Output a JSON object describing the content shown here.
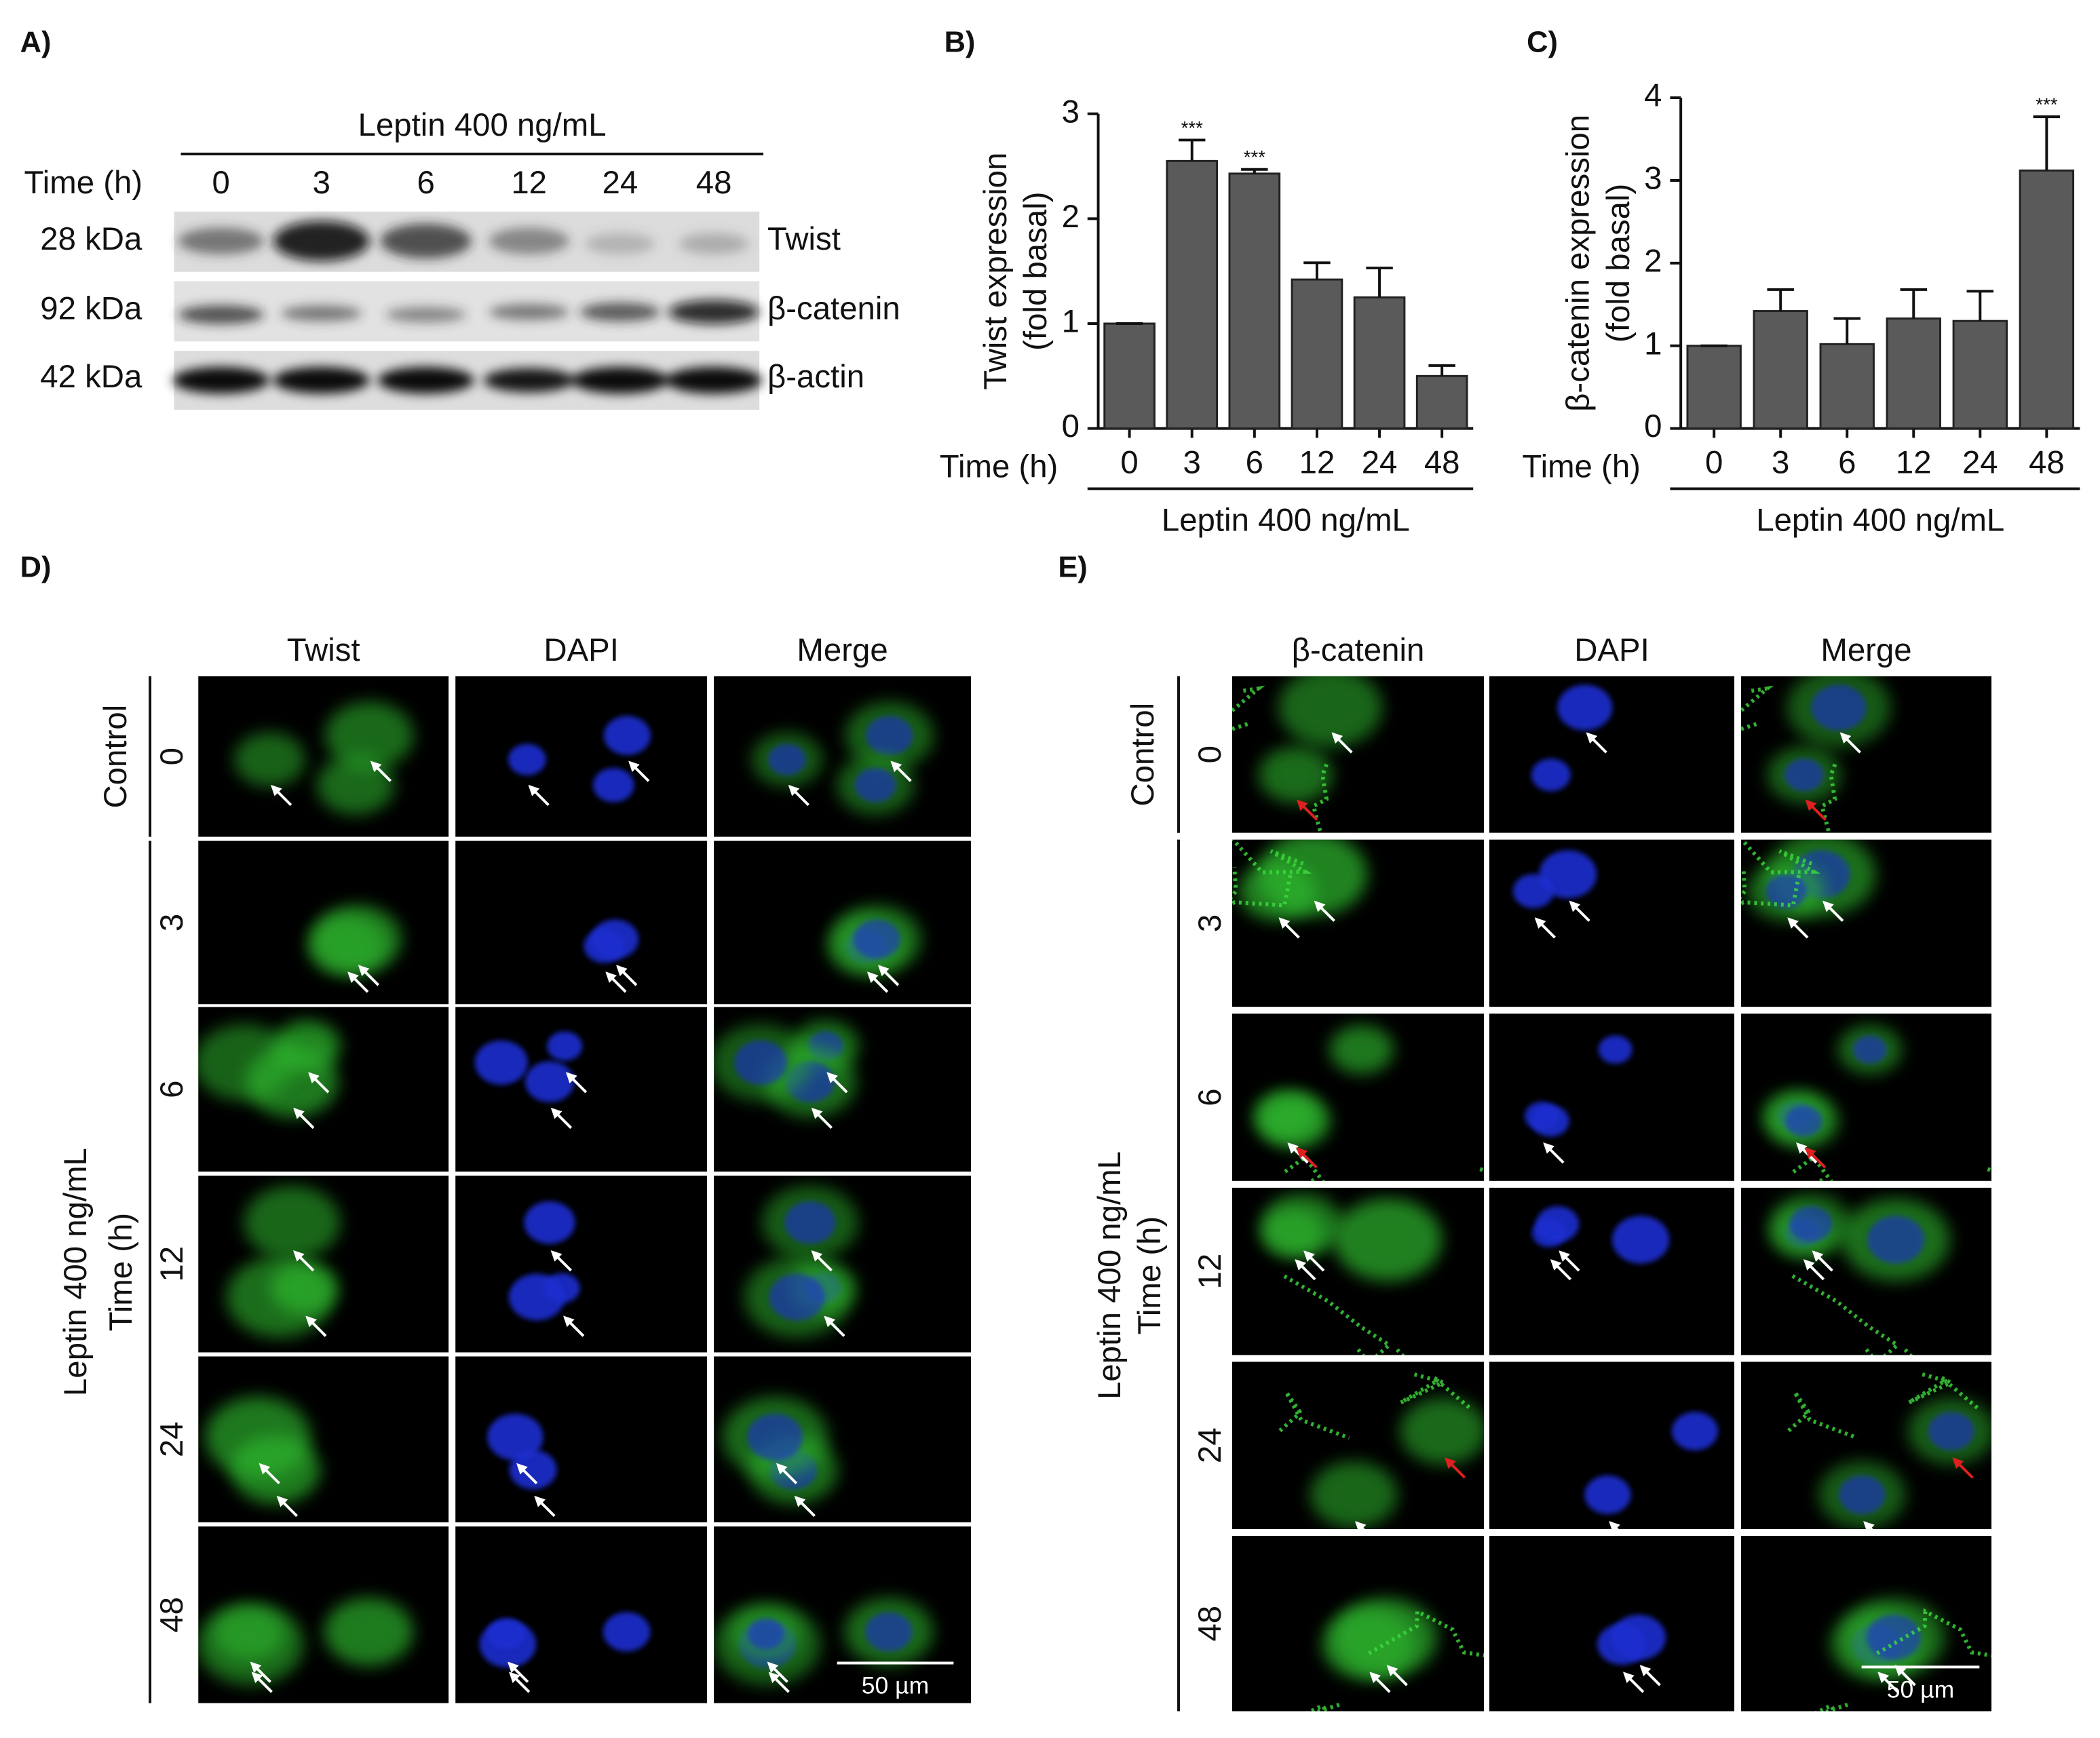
{
  "blot": {
    "label": "A)",
    "treatment": "Leptin 400 ng/mL",
    "time_label": "Time (h)",
    "times": [
      "0",
      "3",
      "6",
      "12",
      "24",
      "48"
    ],
    "rows": [
      {
        "size": "28 kDa",
        "protein": "Twist"
      },
      {
        "size": "92 kDa",
        "protein": "β-catenin"
      },
      {
        "size": "42 kDa",
        "protein": "β-actin"
      }
    ]
  },
  "chart_data": [
    {
      "type": "bar",
      "panel_label": "B)",
      "y_label": [
        "Twist  expression",
        "(fold basal)"
      ],
      "x_label": "Time (h)",
      "group_label": "Leptin 400 ng/mL",
      "categories": [
        "0",
        "3",
        "6",
        "12",
        "24",
        "48"
      ],
      "values": [
        1,
        2.55,
        2.43,
        1.42,
        1.25,
        0.5
      ],
      "errors": [
        0,
        0.2,
        0.04,
        0.16,
        0.28,
        0.1
      ],
      "significance": [
        null,
        "***",
        "***",
        null,
        null,
        null
      ],
      "color": "#5a5a5a",
      "ylim": [
        0,
        3
      ],
      "yticks": [
        0,
        1,
        2,
        3
      ]
    },
    {
      "type": "bar",
      "panel_label": "C)",
      "y_label": [
        "β-catenin expression",
        "(fold basal)"
      ],
      "x_label": "Time (h)",
      "group_label": "Leptin 400 ng/mL",
      "categories": [
        "0",
        "3",
        "6",
        "12",
        "24",
        "48"
      ],
      "values": [
        1,
        1.42,
        1.02,
        1.33,
        1.3,
        3.12
      ],
      "errors": [
        0,
        0.26,
        0.31,
        0.35,
        0.36,
        0.65
      ],
      "significance": [
        null,
        null,
        null,
        null,
        null,
        "***"
      ],
      "color": "#5a5a5a",
      "ylim": [
        0,
        4
      ],
      "yticks": [
        0,
        1,
        2,
        3,
        4
      ]
    }
  ],
  "microscopy": [
    {
      "label": "D)",
      "columns": [
        "Twist",
        "DAPI",
        "Merge"
      ],
      "control_label": "Control",
      "treatment_label": [
        "Leptin 400 ng/mL",
        "Time (h)"
      ],
      "rows": [
        "0",
        "3",
        "6",
        "12",
        "24",
        "48"
      ],
      "scale_bar": "50 µm"
    },
    {
      "label": "E)",
      "columns": [
        "β-catenin",
        "DAPI",
        "Merge"
      ],
      "control_label": "Control",
      "treatment_label": [
        "Leptin 400 ng/mL",
        "Time (h)"
      ],
      "rows": [
        "0",
        "3",
        "6",
        "12",
        "24",
        "48"
      ],
      "scale_bar": "50 µm"
    }
  ]
}
